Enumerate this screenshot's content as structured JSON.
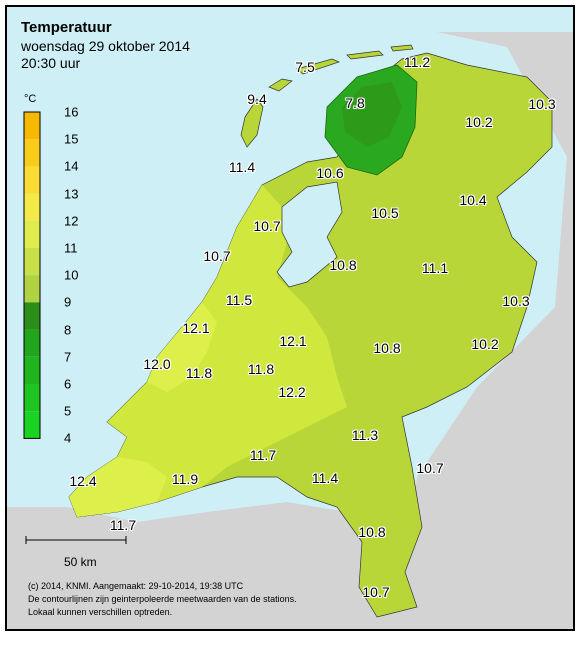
{
  "title": "Temperatuur",
  "subtitle_date": "woensdag 29 oktober 2014",
  "subtitle_time": "20:30 uur",
  "legend": {
    "unit": "°C",
    "ticks": [
      "16",
      "15",
      "14",
      "13",
      "12",
      "11",
      "10",
      "9",
      "8",
      "7",
      "6",
      "5",
      "4"
    ],
    "colors_top_to_bottom": [
      "#f6b800",
      "#f9cb1a",
      "#fbdc33",
      "#f3e948",
      "#e0ec4e",
      "#c8e04a",
      "#b2d246",
      "#2b8e18",
      "#23a41d",
      "#20b51f",
      "#1ec421",
      "#1ad323",
      "#16e226"
    ]
  },
  "station_values": [
    {
      "label": "7.5"
    },
    {
      "label": "11.2"
    },
    {
      "label": "9.4"
    },
    {
      "label": "7.8"
    },
    {
      "label": "10.3"
    },
    {
      "label": "10.2"
    },
    {
      "label": "11.4"
    },
    {
      "label": "10.6"
    },
    {
      "label": "10.5"
    },
    {
      "label": "10.4"
    },
    {
      "label": "10.7"
    },
    {
      "label": "10.7"
    },
    {
      "label": "10.8"
    },
    {
      "label": "11.1"
    },
    {
      "label": "11.5"
    },
    {
      "label": "10.3"
    },
    {
      "label": "12.1"
    },
    {
      "label": "12.1"
    },
    {
      "label": "10.2"
    },
    {
      "label": "10.8"
    },
    {
      "label": "12.0"
    },
    {
      "label": "11.8"
    },
    {
      "label": "11.8"
    },
    {
      "label": "12.2"
    },
    {
      "label": "11.3"
    },
    {
      "label": "11.7"
    },
    {
      "label": "10.7"
    },
    {
      "label": "11.4"
    },
    {
      "label": "12.4"
    },
    {
      "label": "11.9"
    },
    {
      "label": "11.7"
    },
    {
      "label": "10.8"
    },
    {
      "label": "10.7"
    }
  ],
  "scale_bar_label": "50 km",
  "footer": {
    "line1": "(c) 2014, KNMI. Aangemaakt: 29-10-2014, 19:38 UTC",
    "line2": "De contourlijnen zijn geinterpoleerde meetwaarden van de stations.",
    "line3": "Lokaal kunnen verschillen optreden."
  },
  "colors": {
    "sea": "#cfeff6",
    "foreign_land": "#d3d3d3",
    "land_main": "#b8d637",
    "land_warm": "#d0e83e",
    "land_coast": "#dcef4a",
    "cold_dark": "#2e9a1a",
    "cold_mid": "#2aa820"
  }
}
